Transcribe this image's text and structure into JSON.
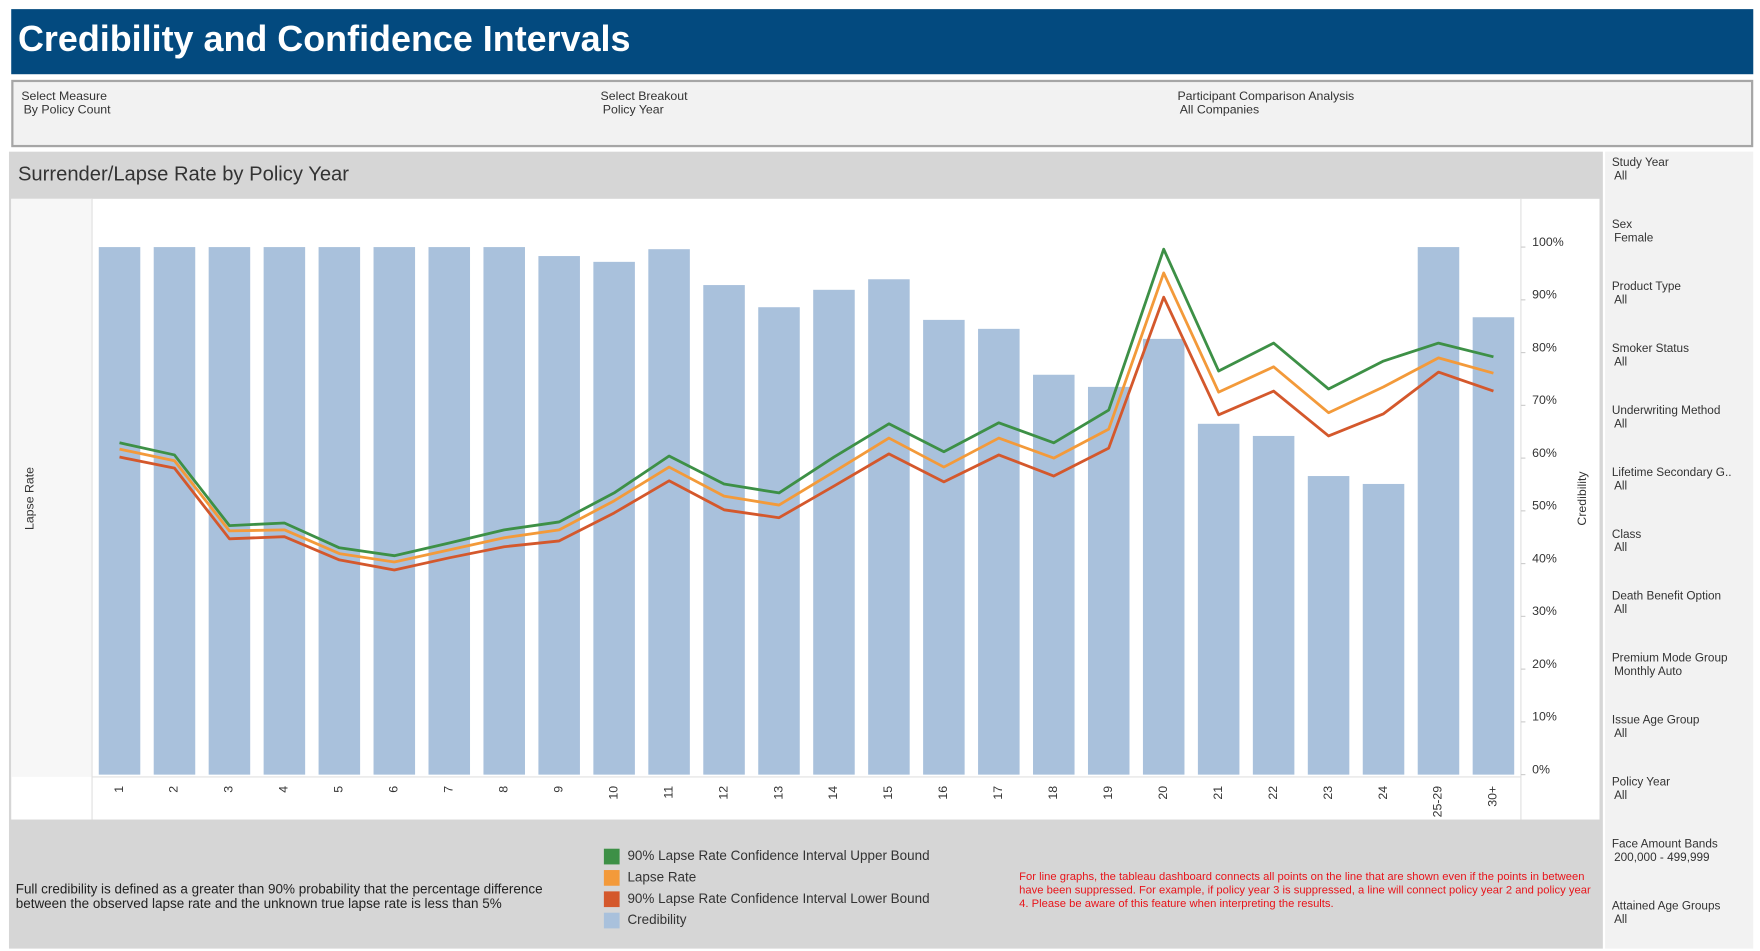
{
  "header": {
    "title": "Credibility and Confidence Intervals"
  },
  "filters": [
    {
      "label": "Select Measure",
      "value": "By Policy Count"
    },
    {
      "label": "Select Breakout",
      "value": "Policy Year"
    },
    {
      "label": "Participant Comparison Analysis",
      "value": "All Companies"
    }
  ],
  "sidebar_filters": [
    {
      "label": "Study Year",
      "value": "All"
    },
    {
      "label": "Sex",
      "value": "Female"
    },
    {
      "label": "Product Type",
      "value": "All"
    },
    {
      "label": "Smoker Status",
      "value": "All"
    },
    {
      "label": "Underwriting Method",
      "value": "All"
    },
    {
      "label": "Lifetime Secondary G..",
      "value": "All"
    },
    {
      "label": "Class",
      "value": "All"
    },
    {
      "label": "Death Benefit Option",
      "value": "All"
    },
    {
      "label": "Premium Mode Group",
      "value": "Monthly Auto"
    },
    {
      "label": "Issue Age Group",
      "value": "All"
    },
    {
      "label": "Policy Year",
      "value": "All"
    },
    {
      "label": "Face Amount Bands",
      "value": "200,000 - 499,999"
    },
    {
      "label": "Attained Age Groups",
      "value": "All"
    }
  ],
  "footnote": "Full credibility is defined as a greater than 90% probability that the percentage difference between the observed lapse rate and the unknown true lapse rate is less than 5%",
  "warning": "For line graphs, the tableau dashboard connects all points on the line that are shown even if the points in between have been suppressed. For example, if policy year 3 is suppressed, a line will connect policy year 2 and policy year 4. Please be aware of this feature when interpreting the results.",
  "chart_data": {
    "type": "bar_line",
    "title": "Surrender/Lapse Rate by Policy Year",
    "y_label": "Lapse Rate",
    "y2_label": "Credibility",
    "categories": [
      "1",
      "2",
      "3",
      "4",
      "5",
      "6",
      "7",
      "8",
      "9",
      "10",
      "11",
      "12",
      "13",
      "14",
      "15",
      "16",
      "17",
      "18",
      "19",
      "20",
      "21",
      "22",
      "23",
      "24",
      "25-29",
      "30+"
    ],
    "ylim": [
      0,
      100
    ],
    "y2lim": [
      0,
      100
    ],
    "y2ticks": [
      {
        "value": 0,
        "label": "0%"
      },
      {
        "value": 10,
        "label": "10%"
      },
      {
        "value": 20,
        "label": "20%"
      },
      {
        "value": 30,
        "label": "30%"
      },
      {
        "value": 40,
        "label": "40%"
      },
      {
        "value": 50,
        "label": "50%"
      },
      {
        "value": 60,
        "label": "60%"
      },
      {
        "value": 70,
        "label": "70%"
      },
      {
        "value": 80,
        "label": "80%"
      },
      {
        "value": 90,
        "label": "90%"
      },
      {
        "value": 100,
        "label": "100%"
      }
    ],
    "series": [
      {
        "name": "90% Lapse Rate Confidence Interval Upper Bound",
        "color": "#3d9046",
        "type": "line",
        "values": [
          62.9,
          60.6,
          47.2,
          47.7,
          43.0,
          41.5,
          43.9,
          46.4,
          47.9,
          53.4,
          60.4,
          55.1,
          53.4,
          60.2,
          66.5,
          61.2,
          66.7,
          62.9,
          69.1,
          99.6,
          76.5,
          81.8,
          73.1,
          78.4,
          81.8,
          79.2
        ]
      },
      {
        "name": "Lapse Rate",
        "color": "#f39a3a",
        "type": "line",
        "values": [
          61.7,
          59.5,
          46.2,
          46.4,
          41.9,
          40.3,
          42.6,
          44.9,
          46.4,
          51.9,
          58.3,
          52.8,
          51.1,
          57.4,
          63.8,
          58.3,
          63.8,
          60.0,
          65.5,
          95.1,
          72.5,
          77.3,
          68.6,
          73.5,
          79.0,
          76.1
        ]
      },
      {
        "name": "90% Lapse Rate Confidence Interval Lower Bound",
        "color": "#d4582c",
        "type": "line",
        "values": [
          60.2,
          58.1,
          44.7,
          45.1,
          40.7,
          38.8,
          41.1,
          43.2,
          44.3,
          49.6,
          55.7,
          50.2,
          48.7,
          54.7,
          60.8,
          55.5,
          60.6,
          56.6,
          61.9,
          90.5,
          68.2,
          72.7,
          64.2,
          68.4,
          76.3,
          72.7
        ]
      },
      {
        "name": "Credibility",
        "color": "#a9c1dc",
        "type": "bar",
        "axis": "y2",
        "values": [
          100,
          100,
          100,
          100,
          100,
          100,
          100,
          100,
          98.3,
          97.2,
          99.6,
          92.8,
          88.6,
          91.9,
          93.9,
          86.2,
          84.5,
          75.8,
          73.5,
          82.6,
          66.5,
          64.2,
          56.6,
          55.1,
          100,
          86.7
        ]
      }
    ]
  }
}
